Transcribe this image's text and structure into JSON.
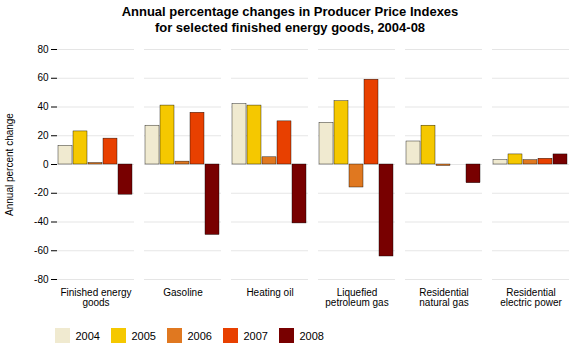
{
  "chart_data": {
    "type": "bar",
    "title": "Annual percentage changes in Producer Price Indexes\nfor selected finished energy goods, 2004-08",
    "ylabel": "Annual percent change",
    "categories": [
      "Finished energy\ngoods",
      "Gasoline",
      "Heating oil",
      "Liquefied\npetroleum gas",
      "Residential\nnatural gas",
      "Residential\nelectric power"
    ],
    "series": [
      {
        "name": "2004",
        "color": "#f0ead0",
        "values": [
          13,
          27,
          42,
          29,
          16,
          3
        ]
      },
      {
        "name": "2005",
        "color": "#f5c800",
        "values": [
          23,
          41,
          41,
          44,
          27,
          7
        ]
      },
      {
        "name": "2006",
        "color": "#e07820",
        "values": [
          1,
          2,
          5,
          -16,
          -1,
          3
        ]
      },
      {
        "name": "2007",
        "color": "#e84000",
        "values": [
          18,
          36,
          30,
          59,
          0,
          4
        ]
      },
      {
        "name": "2008",
        "color": "#780000",
        "values": [
          -21,
          -49,
          -41,
          -64,
          -13,
          7
        ]
      }
    ],
    "ylim": [
      -80,
      80
    ],
    "yticks": [
      -80,
      -60,
      -40,
      -20,
      0,
      20,
      40,
      60,
      80
    ],
    "grid": true,
    "legend": "bottom"
  }
}
